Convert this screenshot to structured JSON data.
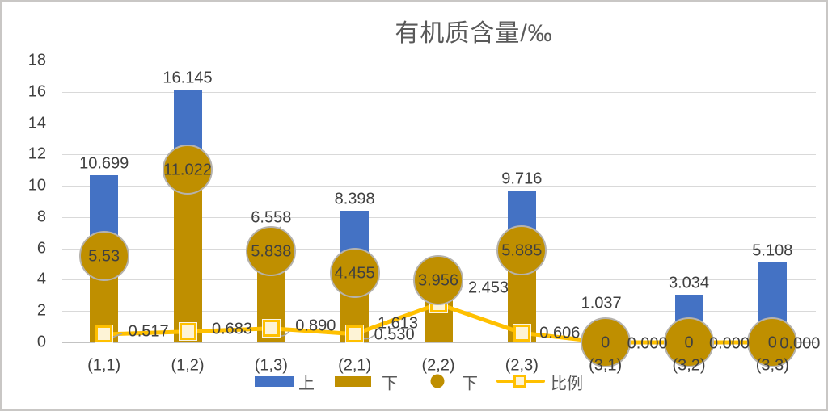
{
  "chart_data": {
    "type": "combo",
    "title": "有机质含量/‰",
    "categories": [
      "(1,1)",
      "(1,2)",
      "(1,3)",
      "(2,1)",
      "(2,2)",
      "(2,3)",
      "(3,1)",
      "(3,2)",
      "(3,3)"
    ],
    "ylim": [
      0,
      18
    ],
    "yticks": [
      0,
      2,
      4,
      6,
      8,
      10,
      12,
      14,
      16,
      18
    ],
    "grid": true,
    "legend_position": "bottom",
    "series": [
      {
        "name": "上",
        "type": "bar",
        "color": "#4472C4",
        "values": [
          10.699,
          16.145,
          6.558,
          8.398,
          1.613,
          9.716,
          1.037,
          3.034,
          5.108
        ],
        "labels": [
          "10.699",
          "16.145",
          "6.558",
          "8.398",
          "1.613",
          "9.716",
          "1.037",
          "3.034",
          "5.108"
        ]
      },
      {
        "name": "下",
        "type": "bar",
        "color": "#BF8F00",
        "values": [
          5.53,
          11.022,
          5.838,
          4.455,
          3.956,
          5.885,
          0,
          0,
          0
        ]
      },
      {
        "name": "下",
        "type": "scatter",
        "marker": "circle",
        "color": "#BF8F00",
        "values": [
          5.53,
          11.022,
          5.838,
          4.455,
          3.956,
          5.885,
          0,
          0,
          0
        ],
        "labels": [
          "5.53",
          "11.022",
          "5.838",
          "4.455",
          "3.956",
          "5.885",
          "0",
          "0",
          "0"
        ]
      },
      {
        "name": "比例",
        "type": "line",
        "color": "#FFC000",
        "marker": "square",
        "marker_fill": "#FFF2CC",
        "values": [
          0.517,
          0.683,
          0.89,
          0.53,
          2.453,
          0.606,
          0,
          0,
          0
        ],
        "labels": [
          "0.517",
          "0.683",
          "0.890",
          "0.530",
          "2.453",
          "0.606",
          "0.000",
          "0.000",
          "0.000"
        ]
      }
    ],
    "colors": {
      "grid": "#D9D9D9",
      "axis": "#C3C3C3",
      "label_text": "#404040",
      "title_text": "#595959",
      "circle_border": "#B5B2AD",
      "leader_line": "#A6A6A6"
    }
  }
}
